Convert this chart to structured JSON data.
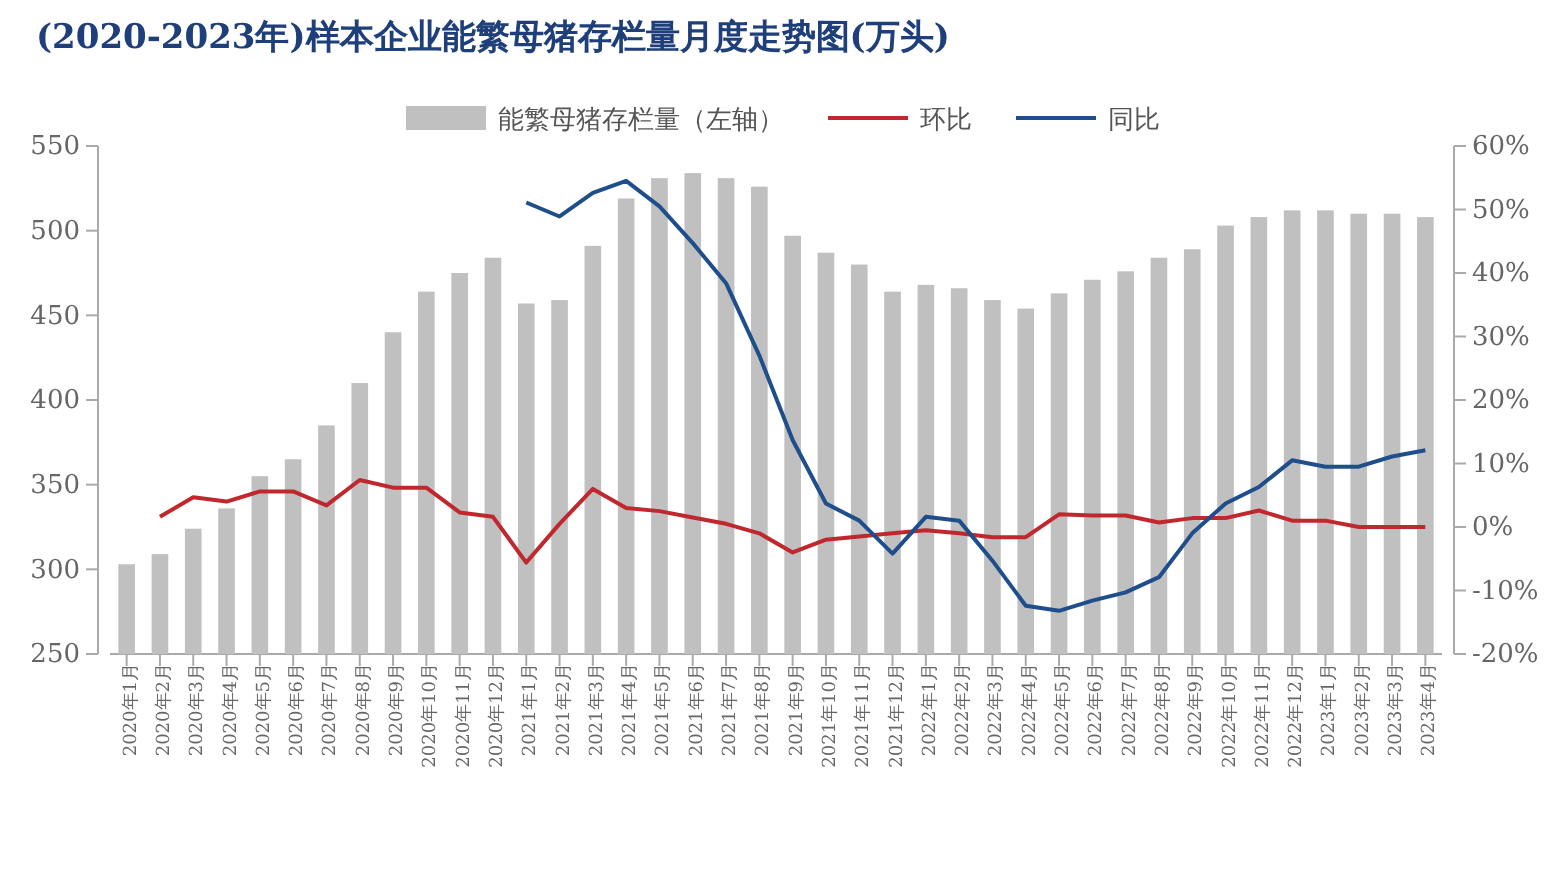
{
  "chart_data": {
    "type": "bar",
    "title": "(2020-2023年)样本企业能繁母猪存栏量月度走势图(万头)",
    "categories": [
      "2020年1月",
      "2020年2月",
      "2020年3月",
      "2020年4月",
      "2020年5月",
      "2020年6月",
      "2020年7月",
      "2020年8月",
      "2020年9月",
      "2020年10月",
      "2020年11月",
      "2020年12月",
      "2021年1月",
      "2021年2月",
      "2021年3月",
      "2021年4月",
      "2021年5月",
      "2021年6月",
      "2021年7月",
      "2021年8月",
      "2021年9月",
      "2021年10月",
      "2021年11月",
      "2021年12月",
      "2022年1月",
      "2022年2月",
      "2022年3月",
      "2022年4月",
      "2022年5月",
      "2022年6月",
      "2022年7月",
      "2022年8月",
      "2022年9月",
      "2022年10月",
      "2022年11月",
      "2022年12月",
      "2023年1月",
      "2023年2月",
      "2023年3月",
      "2023年4月"
    ],
    "series": [
      {
        "name": "能繁母猪存栏量（左轴）",
        "color": "#c0c0c0",
        "values": [
          303,
          309,
          324,
          336,
          355,
          365,
          385,
          410,
          440,
          464,
          475,
          484,
          457,
          459,
          491,
          519,
          531,
          534,
          531,
          526,
          497,
          487,
          480,
          464,
          468,
          466,
          459,
          454,
          463,
          471,
          476,
          484,
          489,
          503,
          508,
          512,
          512,
          510,
          510,
          508
        ]
      },
      {
        "name": "环比",
        "type": "line",
        "axis": "y2",
        "color": "#c0282d",
        "values": [
          null,
          1.6,
          4.7,
          4.0,
          5.6,
          5.6,
          3.4,
          7.4,
          6.2,
          6.2,
          2.3,
          1.6,
          -5.6,
          0.5,
          6.0,
          3.0,
          2.5,
          1.5,
          0.5,
          -1.0,
          -4.0,
          -2.0,
          -1.5,
          -1.0,
          -0.5,
          -1.0,
          -1.6,
          -1.6,
          2.0,
          1.8,
          1.8,
          0.7,
          1.4,
          1.4,
          2.6,
          1.0,
          1.0,
          0,
          0,
          0
        ]
      },
      {
        "name": "同比",
        "type": "line",
        "axis": "y2",
        "color": "#1f4e8c",
        "values": [
          null,
          null,
          null,
          null,
          null,
          null,
          null,
          null,
          null,
          null,
          null,
          null,
          51.1,
          48.9,
          52.6,
          54.5,
          50.5,
          44.7,
          38.4,
          27,
          13.7,
          3.7,
          1,
          -4.2,
          1.6,
          1,
          -5.3,
          -12.4,
          -13.2,
          -11.6,
          -10.3,
          -7.9,
          -1,
          3.7,
          6.3,
          10.5,
          9.5,
          9.5,
          11.1,
          12.1
        ]
      }
    ],
    "ylim": [
      250,
      550
    ],
    "yticks": [
      250,
      300,
      350,
      400,
      450,
      500,
      550
    ],
    "y2lim": [
      -20,
      60
    ],
    "y2ticks": [
      {
        "value": -20,
        "label": "-20%"
      },
      {
        "value": -10,
        "label": "-10%"
      },
      {
        "value": 0,
        "label": "0%"
      },
      {
        "value": 10,
        "label": "10%"
      },
      {
        "value": 20,
        "label": "20%"
      },
      {
        "value": 30,
        "label": "30%"
      },
      {
        "value": 40,
        "label": "40%"
      },
      {
        "value": 50,
        "label": "50%"
      },
      {
        "value": 60,
        "label": "60%"
      }
    ],
    "legend": "top"
  }
}
